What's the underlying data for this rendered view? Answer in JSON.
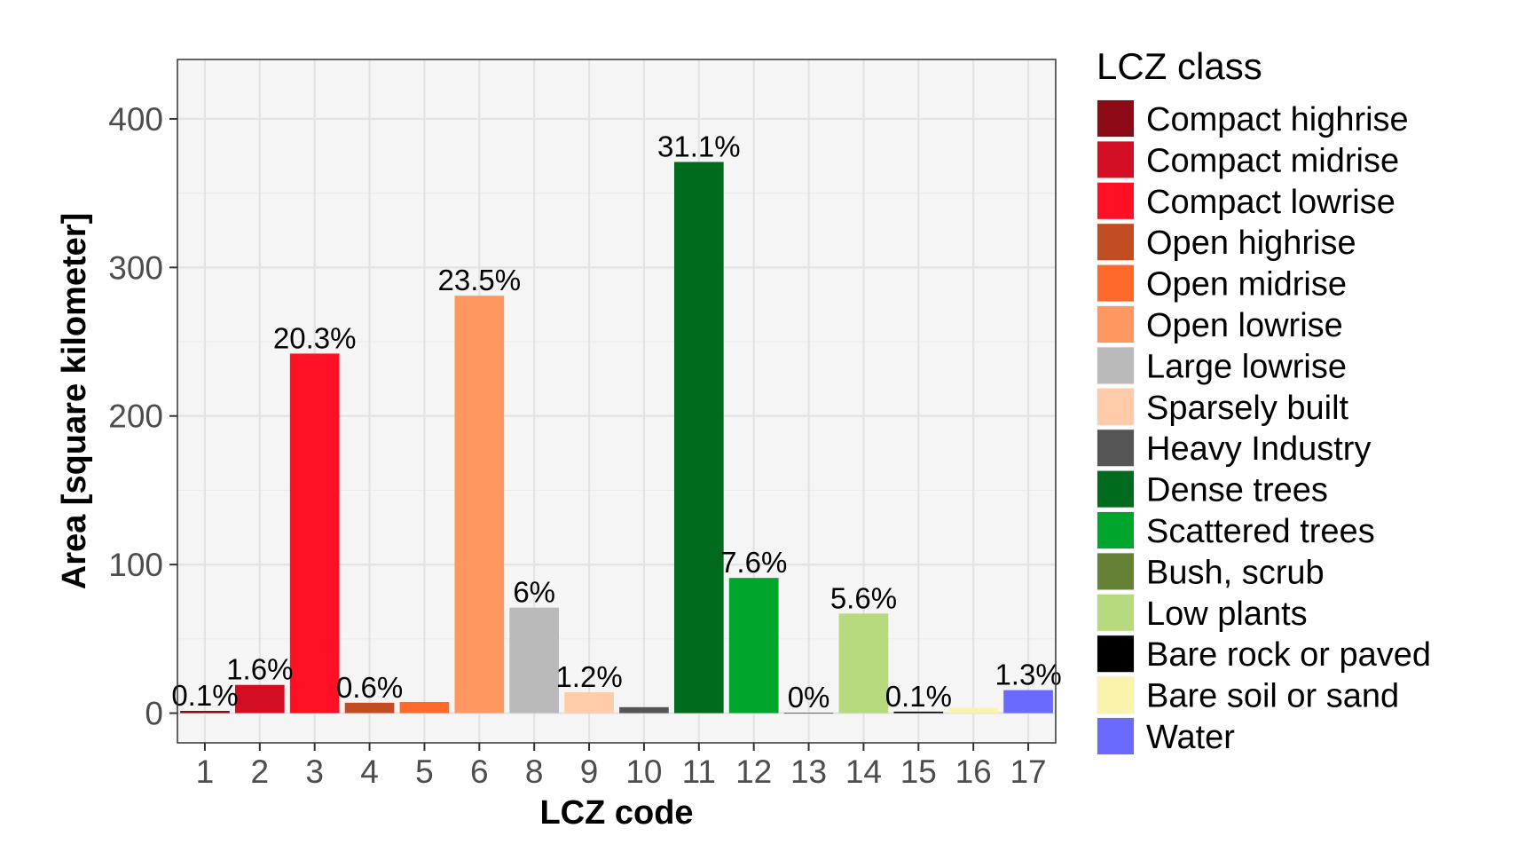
{
  "chart_data": {
    "type": "bar",
    "xlabel": "LCZ code",
    "ylabel": "Area [square kilometer]",
    "ylim": [
      -20,
      440
    ],
    "yticks": [
      0,
      100,
      200,
      300,
      400
    ],
    "grid": true,
    "legend_position": "right",
    "legend_title": "LCZ class",
    "categories": [
      "1",
      "2",
      "3",
      "4",
      "5",
      "6",
      "8",
      "9",
      "10",
      "11",
      "12",
      "13",
      "14",
      "15",
      "16",
      "17"
    ],
    "values": [
      1.5,
      19,
      242,
      7,
      7.5,
      281,
      71,
      14,
      4,
      371,
      91,
      0.3,
      67,
      1,
      3.5,
      15.5
    ],
    "percent_labels": [
      "0.1%",
      "1.6%",
      "20.3%",
      "0.6%",
      "",
      "23.5%",
      "6%",
      "1.2%",
      "",
      "31.1%",
      "7.6%",
      "0%",
      "5.6%",
      "0.1%",
      "",
      "1.3%"
    ],
    "bar_colors": [
      "#8c0a15",
      "#d30e22",
      "#ff1024",
      "#c24d22",
      "#ff6a2c",
      "#ff9860",
      "#bababa",
      "#ffcba8",
      "#555555",
      "#006a1d",
      "#00a52b",
      "#648136",
      "#b8da7f",
      "#000000",
      "#faf3ac",
      "#6a6aff"
    ],
    "legend": [
      {
        "label": "Compact highrise",
        "color": "#8c0a15"
      },
      {
        "label": "Compact midrise",
        "color": "#d30e22"
      },
      {
        "label": "Compact lowrise",
        "color": "#ff1024"
      },
      {
        "label": "Open highrise",
        "color": "#c24d22"
      },
      {
        "label": "Open midrise",
        "color": "#ff6a2c"
      },
      {
        "label": "Open lowrise",
        "color": "#ff9860"
      },
      {
        "label": "Large lowrise",
        "color": "#bababa"
      },
      {
        "label": "Sparsely built",
        "color": "#ffcba8"
      },
      {
        "label": "Heavy Industry",
        "color": "#555555"
      },
      {
        "label": "Dense trees",
        "color": "#006a1d"
      },
      {
        "label": "Scattered trees",
        "color": "#00a52b"
      },
      {
        "label": "Bush, scrub",
        "color": "#648136"
      },
      {
        "label": "Low plants",
        "color": "#b8da7f"
      },
      {
        "label": "Bare rock or paved",
        "color": "#000000"
      },
      {
        "label": "Bare soil or sand",
        "color": "#faf3ac"
      },
      {
        "label": "Water",
        "color": "#6a6aff"
      }
    ]
  }
}
